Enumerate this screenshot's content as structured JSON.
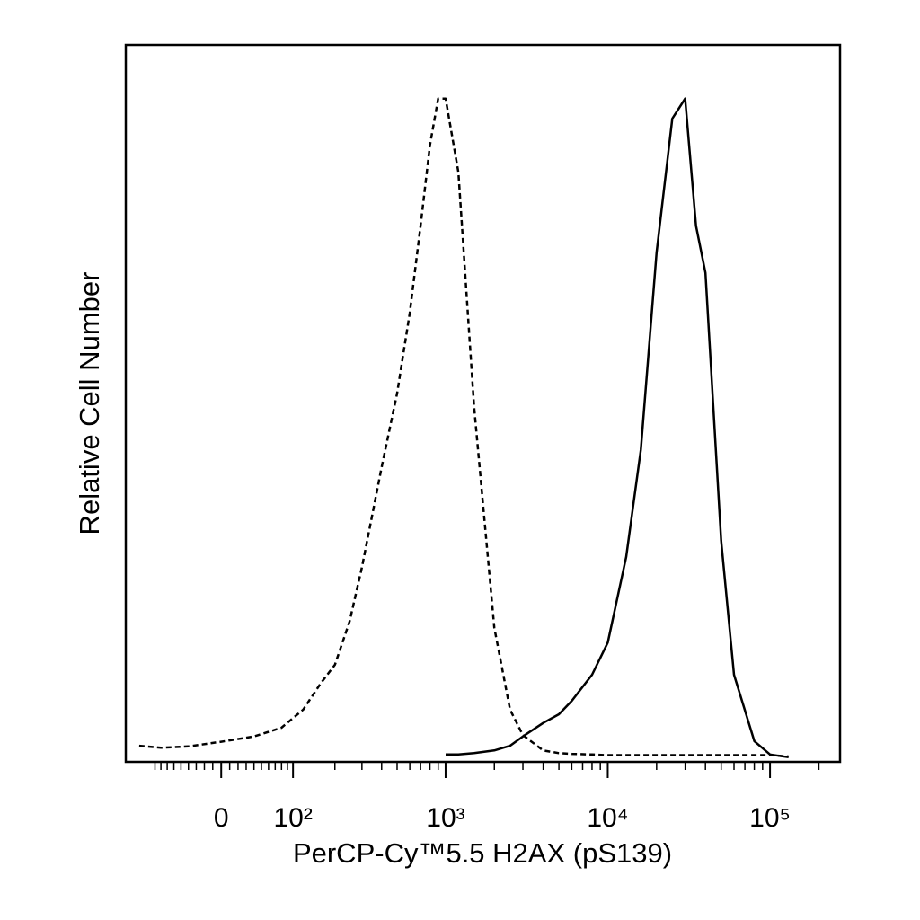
{
  "chart_data": {
    "type": "line",
    "xscale": "biexponential",
    "xlabel": "PerCP-Cy™5.5 H2AX (pS139)",
    "ylabel": "Relative Cell Number",
    "x": [
      -120,
      -80,
      -40,
      0,
      40,
      80,
      120,
      160,
      200,
      250,
      300,
      400,
      500,
      600,
      700,
      800,
      900,
      1000,
      1200,
      1500,
      2000,
      2500,
      3000,
      4000,
      5000,
      6000,
      8000,
      10000,
      13000,
      16000,
      20000,
      25000,
      30000,
      35000,
      40000,
      50000,
      60000,
      80000,
      100000,
      130000
    ],
    "series": [
      {
        "color": "#000000",
        "style": "dashed",
        "values": [
          2.4,
          2.1,
          2.3,
          3,
          3.8,
          5.1,
          7.8,
          11.7,
          14.5,
          21,
          29,
          44,
          55,
          67,
          80,
          92,
          99,
          99,
          88,
          53,
          20,
          7.8,
          4,
          1.7,
          1.3,
          1.2,
          1.1,
          1,
          1,
          1,
          1,
          1,
          1,
          1,
          1,
          1,
          1,
          1,
          1,
          0.8
        ]
      },
      {
        "color": "#000000",
        "style": "solid",
        "values": [
          null,
          null,
          null,
          null,
          null,
          null,
          null,
          null,
          null,
          null,
          null,
          null,
          null,
          null,
          null,
          null,
          null,
          1.1,
          1.1,
          1.3,
          1.7,
          2.4,
          3.8,
          5.8,
          7.1,
          9.1,
          13,
          17.8,
          30.6,
          46.6,
          76,
          96,
          99,
          80,
          73,
          33,
          13,
          3.1,
          1.1,
          0.7
        ]
      }
    ],
    "xlim": [
      -150,
      270000
    ],
    "ylim": [
      0,
      107
    ],
    "xticks": [
      {
        "value": 0,
        "label": "0"
      },
      {
        "value": 100,
        "label": "10²"
      },
      {
        "value": 1000,
        "label": "10³"
      },
      {
        "value": 10000,
        "label": "10⁴"
      },
      {
        "value": 100000,
        "label": "10⁵"
      }
    ],
    "xminorticks": [
      -90,
      -80,
      -70,
      -60,
      -50,
      -40,
      -30,
      -20,
      -10,
      10,
      20,
      30,
      40,
      50,
      60,
      70,
      80,
      90,
      200,
      300,
      400,
      500,
      600,
      700,
      800,
      900,
      2000,
      3000,
      4000,
      5000,
      6000,
      7000,
      8000,
      9000,
      20000,
      30000,
      40000,
      50000,
      60000,
      70000,
      80000,
      90000,
      200000
    ]
  }
}
